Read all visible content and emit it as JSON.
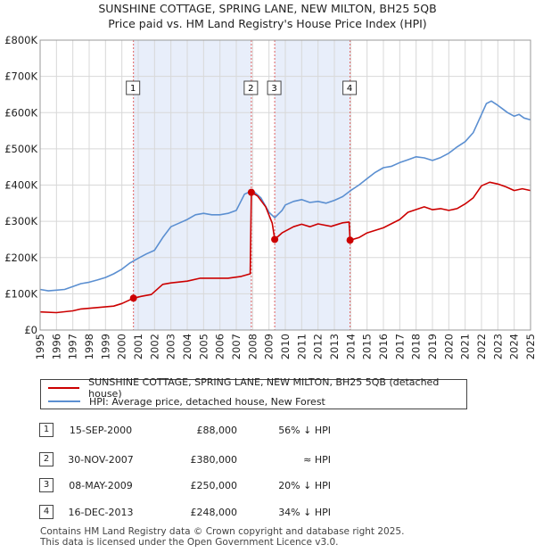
{
  "chart_data": {
    "type": "line",
    "title": "SUNSHINE COTTAGE, SPRING LANE, NEW MILTON, BH25 5QB",
    "subtitle": "Price paid vs. HM Land Registry's House Price Index (HPI)",
    "xlim": [
      1995,
      2025
    ],
    "ylim": [
      0,
      800000
    ],
    "x_ticks": [
      "1995",
      "1996",
      "1997",
      "1998",
      "1999",
      "2000",
      "2001",
      "2002",
      "2003",
      "2004",
      "2005",
      "2006",
      "2007",
      "2008",
      "2009",
      "2010",
      "2011",
      "2012",
      "2013",
      "2014",
      "2015",
      "2016",
      "2017",
      "2018",
      "2019",
      "2020",
      "2021",
      "2022",
      "2023",
      "2024",
      "2025"
    ],
    "y_ticks": [
      {
        "value": 0,
        "label": "£0"
      },
      {
        "value": 100000,
        "label": "£100K"
      },
      {
        "value": 200000,
        "label": "£200K"
      },
      {
        "value": 300000,
        "label": "£300K"
      },
      {
        "value": 400000,
        "label": "£400K"
      },
      {
        "value": 500000,
        "label": "£500K"
      },
      {
        "value": 600000,
        "label": "£600K"
      },
      {
        "value": 700000,
        "label": "£700K"
      },
      {
        "value": 800000,
        "label": "£800K"
      }
    ],
    "shaded_periods": [
      [
        2000.71,
        2007.92
      ],
      [
        2009.35,
        2013.96
      ]
    ],
    "series": [
      {
        "name": "SUNSHINE COTTAGE, SPRING LANE, NEW MILTON, BH25 5QB (detached house)",
        "color": "#cc0000",
        "x": [
          1995.0,
          1996.0,
          1997.0,
          1997.5,
          1998.5,
          1999.5,
          2000.0,
          2000.71,
          2001.2,
          2001.8,
          2002.5,
          2003.0,
          2004.0,
          2004.8,
          2005.5,
          2006.5,
          2007.3,
          2007.85,
          2007.92,
          2008.3,
          2008.8,
          2009.2,
          2009.35,
          2009.8,
          2010.5,
          2011.0,
          2011.5,
          2012.0,
          2012.8,
          2013.5,
          2013.9,
          2013.96,
          2014.5,
          2015.0,
          2016.0,
          2017.0,
          2017.5,
          2018.5,
          2019.0,
          2019.5,
          2020.0,
          2020.5,
          2021.0,
          2021.5,
          2022.0,
          2022.5,
          2023.0,
          2023.5,
          2024.0,
          2024.5,
          2025.0
        ],
        "values": [
          50000,
          48000,
          53000,
          58000,
          62000,
          66000,
          73000,
          88000,
          93000,
          98000,
          126000,
          130000,
          135000,
          143000,
          143000,
          143000,
          148000,
          155000,
          380000,
          370000,
          340000,
          295000,
          250000,
          268000,
          285000,
          292000,
          285000,
          293000,
          286000,
          296000,
          298000,
          248000,
          255000,
          268000,
          282000,
          305000,
          325000,
          340000,
          332000,
          335000,
          330000,
          335000,
          348000,
          365000,
          398000,
          408000,
          403000,
          395000,
          385000,
          390000,
          385000
        ]
      },
      {
        "name": "HPI: Average price, detached house, New Forest",
        "color": "#5b8fd1",
        "x": [
          1995.0,
          1995.5,
          1996.0,
          1996.5,
          1997.0,
          1997.5,
          1998.0,
          1998.5,
          1999.0,
          1999.5,
          2000.0,
          2000.5,
          2001.0,
          2001.5,
          2002.0,
          2002.5,
          2003.0,
          2003.5,
          2004.0,
          2004.5,
          2005.0,
          2005.5,
          2006.0,
          2006.5,
          2007.0,
          2007.5,
          2008.0,
          2008.5,
          2009.0,
          2009.35,
          2009.8,
          2010.0,
          2010.5,
          2011.0,
          2011.5,
          2012.0,
          2012.5,
          2013.0,
          2013.5,
          2014.0,
          2014.5,
          2015.0,
          2015.5,
          2016.0,
          2016.5,
          2017.0,
          2017.5,
          2018.0,
          2018.5,
          2019.0,
          2019.5,
          2020.0,
          2020.5,
          2021.0,
          2021.5,
          2022.0,
          2022.3,
          2022.6,
          2023.0,
          2023.3,
          2023.6,
          2024.0,
          2024.3,
          2024.6,
          2025.0
        ],
        "values": [
          112000,
          108000,
          110000,
          112000,
          120000,
          128000,
          132000,
          138000,
          145000,
          155000,
          168000,
          185000,
          198000,
          210000,
          220000,
          255000,
          285000,
          295000,
          305000,
          318000,
          322000,
          318000,
          318000,
          322000,
          330000,
          375000,
          385000,
          365000,
          325000,
          310000,
          330000,
          345000,
          355000,
          360000,
          352000,
          355000,
          350000,
          358000,
          368000,
          385000,
          400000,
          418000,
          435000,
          448000,
          452000,
          462000,
          470000,
          478000,
          475000,
          468000,
          476000,
          488000,
          505000,
          520000,
          545000,
          595000,
          625000,
          632000,
          620000,
          610000,
          600000,
          590000,
          595000,
          585000,
          580000
        ]
      }
    ],
    "sale_markers": [
      {
        "label": "1",
        "x": 2000.71,
        "y": 88000
      },
      {
        "label": "2",
        "x": 2007.92,
        "y": 380000
      },
      {
        "label": "3",
        "x": 2009.35,
        "y": 250000
      },
      {
        "label": "4",
        "x": 2013.96,
        "y": 248000
      }
    ]
  },
  "legend": {
    "property_label": "SUNSHINE COTTAGE, SPRING LANE, NEW MILTON, BH25 5QB (detached house)",
    "hpi_label": "HPI: Average price, detached house, New Forest",
    "property_color": "#cc0000",
    "hpi_color": "#5b8fd1"
  },
  "sales": [
    {
      "num": "1",
      "date": "15-SEP-2000",
      "price": "£88,000",
      "hpi": "56% ↓ HPI"
    },
    {
      "num": "2",
      "date": "30-NOV-2007",
      "price": "£380,000",
      "hpi": "≈ HPI"
    },
    {
      "num": "3",
      "date": "08-MAY-2009",
      "price": "£250,000",
      "hpi": "20% ↓ HPI"
    },
    {
      "num": "4",
      "date": "16-DEC-2013",
      "price": "£248,000",
      "hpi": "34% ↓ HPI"
    }
  ],
  "footer": {
    "line1": "Contains HM Land Registry data © Crown copyright and database right 2025.",
    "line2": "This data is licensed under the Open Government Licence v3.0."
  }
}
